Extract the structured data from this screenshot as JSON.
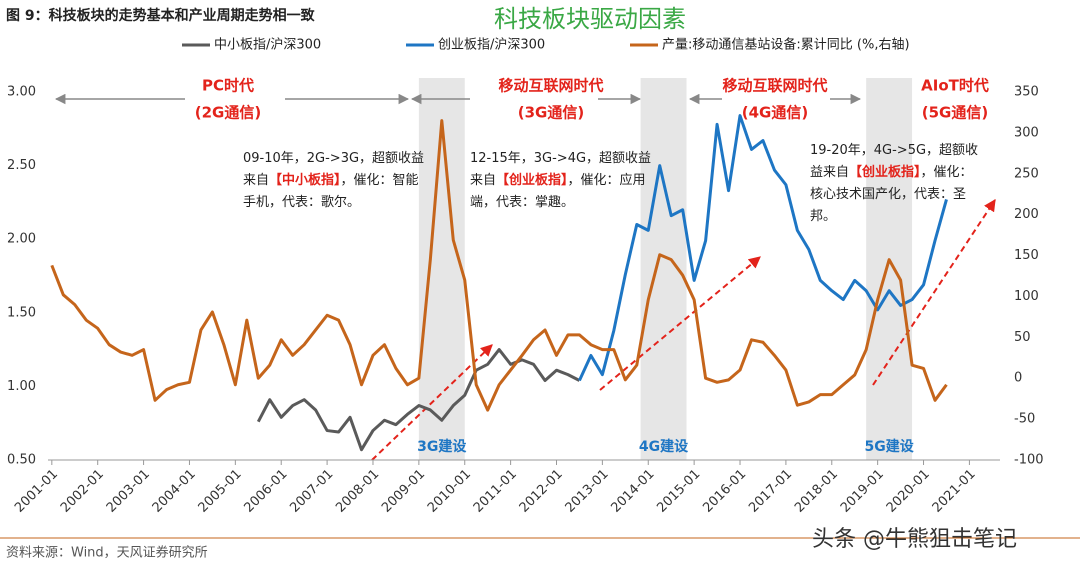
{
  "chart_data": {
    "type": "line",
    "title": "图 9：科技板块的走势基本和产业周期走势相一致",
    "subtitle": "科技板块驱动因素",
    "source": "资料来源：Wind，天风证券研究所",
    "watermark": "头条 @牛熊狙击笔记",
    "x": [
      "2001-01",
      "2001-04",
      "2001-07",
      "2001-10",
      "2002-01",
      "2002-04",
      "2002-07",
      "2002-10",
      "2003-01",
      "2003-04",
      "2003-07",
      "2003-10",
      "2004-01",
      "2004-04",
      "2004-07",
      "2004-10",
      "2005-01",
      "2005-04",
      "2005-07",
      "2005-10",
      "2006-01",
      "2006-04",
      "2006-07",
      "2006-10",
      "2007-01",
      "2007-04",
      "2007-07",
      "2007-10",
      "2008-01",
      "2008-04",
      "2008-07",
      "2008-10",
      "2009-01",
      "2009-04",
      "2009-07",
      "2009-10",
      "2010-01",
      "2010-04",
      "2010-07",
      "2010-10",
      "2011-01",
      "2011-04",
      "2011-07",
      "2011-10",
      "2012-01",
      "2012-04",
      "2012-07",
      "2012-10",
      "2013-01",
      "2013-04",
      "2013-07",
      "2013-10",
      "2014-01",
      "2014-04",
      "2014-07",
      "2014-10",
      "2015-01",
      "2015-04",
      "2015-07",
      "2015-10",
      "2016-01",
      "2016-04",
      "2016-07",
      "2016-10",
      "2017-01",
      "2017-04",
      "2017-07",
      "2017-10",
      "2018-01",
      "2018-04",
      "2018-07",
      "2018-10",
      "2019-01",
      "2019-04",
      "2019-07",
      "2019-10",
      "2020-01",
      "2020-04",
      "2020-07"
    ],
    "series": [
      {
        "name": "中小板指/沪深300",
        "color": "#5a5a5a",
        "axis": "y",
        "values": [
          null,
          null,
          null,
          null,
          null,
          null,
          null,
          null,
          null,
          null,
          null,
          null,
          null,
          null,
          null,
          null,
          null,
          null,
          0.76,
          0.91,
          0.79,
          0.87,
          0.91,
          0.84,
          0.7,
          0.69,
          0.79,
          0.57,
          0.7,
          0.77,
          0.74,
          0.81,
          0.87,
          0.84,
          0.77,
          0.87,
          0.94,
          1.11,
          1.15,
          1.25,
          1.15,
          1.18,
          1.15,
          1.04,
          1.11,
          1.08,
          1.04,
          null,
          null,
          null,
          null,
          null,
          null,
          null,
          null,
          null,
          null,
          null,
          null,
          null,
          null,
          null,
          null,
          null,
          null,
          null,
          null,
          null,
          null,
          null,
          null,
          null,
          null,
          null,
          null,
          null,
          null,
          null,
          null
        ]
      },
      {
        "name": "创业板指/沪深300",
        "color": "#1e76c4",
        "axis": "y",
        "values": [
          null,
          null,
          null,
          null,
          null,
          null,
          null,
          null,
          null,
          null,
          null,
          null,
          null,
          null,
          null,
          null,
          null,
          null,
          null,
          null,
          null,
          null,
          null,
          null,
          null,
          null,
          null,
          null,
          null,
          null,
          null,
          null,
          null,
          null,
          null,
          null,
          null,
          null,
          null,
          null,
          null,
          null,
          null,
          null,
          null,
          null,
          1.04,
          1.21,
          1.08,
          1.38,
          1.76,
          2.1,
          2.06,
          2.5,
          2.16,
          2.2,
          1.72,
          1.99,
          2.78,
          2.33,
          2.84,
          2.61,
          2.67,
          2.47,
          2.37,
          2.06,
          1.93,
          1.72,
          1.65,
          1.59,
          1.72,
          1.65,
          1.52,
          1.65,
          1.55,
          1.59,
          1.69,
          1.99,
          2.27
        ]
      },
      {
        "name": "产量:移动通信基站设备:累计同比 (%,右轴)",
        "color": "#c5651b",
        "axis": "y2",
        "values": [
          138,
          102,
          90,
          71,
          61,
          41,
          32,
          28,
          35,
          -27,
          -14,
          -8,
          -5,
          59,
          81,
          41,
          -8,
          71,
          0,
          16,
          47,
          28,
          41,
          59,
          77,
          71,
          41,
          -8,
          28,
          41,
          12,
          -8,
          0,
          145,
          315,
          169,
          120,
          -8,
          -39,
          -8,
          10,
          28,
          47,
          59,
          28,
          53,
          53,
          41,
          35,
          35,
          -2,
          16,
          96,
          151,
          145,
          126,
          96,
          0,
          -5,
          -2,
          10,
          47,
          44,
          28,
          10,
          -33,
          -29,
          -20,
          -20,
          -8,
          4,
          35,
          96,
          145,
          120,
          16,
          12,
          -27,
          -8
        ]
      }
    ],
    "xlim": [
      "2000-12",
      "2021-09"
    ],
    "xticks": [
      "2001-01",
      "2002-01",
      "2003-01",
      "2004-01",
      "2005-01",
      "2006-01",
      "2007-01",
      "2008-01",
      "2009-01",
      "2010-01",
      "2011-01",
      "2012-01",
      "2013-01",
      "2014-01",
      "2015-01",
      "2016-01",
      "2017-01",
      "2018-01",
      "2019-01",
      "2020-01",
      "2021-01"
    ],
    "ylim": [
      0.5,
      3.0
    ],
    "yticks": [
      {
        "value": 0.5,
        "label": "0.50"
      },
      {
        "value": 1,
        "label": "1.00"
      },
      {
        "value": 1.5,
        "label": "1.50"
      },
      {
        "value": 2,
        "label": "2.00"
      },
      {
        "value": 2.5,
        "label": "2.50"
      },
      {
        "value": 3,
        "label": "3.00"
      }
    ],
    "y2lim": [
      -100,
      350
    ],
    "y2ticks": [
      -100,
      -50,
      0,
      50,
      100,
      150,
      200,
      250,
      300,
      350
    ],
    "bands": [
      {
        "start": "2009-01",
        "end": "2010-01",
        "label": "3G建设"
      },
      {
        "start": "2013-11",
        "end": "2014-11",
        "label": "4G建设"
      },
      {
        "start": "2018-10",
        "end": "2019-10",
        "label": "5G建设"
      }
    ],
    "eras": [
      {
        "name": "PC时代",
        "sub": "(2G通信)"
      },
      {
        "name": "移动互联网时代",
        "sub": "(3G通信)"
      },
      {
        "name": "移动互联网时代",
        "sub": "(4G通信)"
      },
      {
        "name": "AIoT时代",
        "sub": "(5G通信)"
      }
    ],
    "annotations": [
      {
        "lines": [
          [
            {
              "text": "09-10年，2G->3G，超额收益"
            }
          ],
          [
            {
              "text": "来自"
            },
            {
              "text": "【中小板指】",
              "emphasis": true
            },
            {
              "text": "，催化：智能"
            }
          ],
          [
            {
              "text": "手机，代表：歌尔。"
            }
          ]
        ]
      },
      {
        "lines": [
          [
            {
              "text": "12-15年，3G->4G，超额收益"
            }
          ],
          [
            {
              "text": "来自"
            },
            {
              "text": "【创业板指】",
              "emphasis": true
            },
            {
              "text": "，催化：应用"
            }
          ],
          [
            {
              "text": "端，代表：掌趣。"
            }
          ]
        ]
      },
      {
        "lines": [
          [
            {
              "text": "19-20年，4G->5G，超额收"
            }
          ],
          [
            {
              "text": "益来自"
            },
            {
              "text": "【创业板指】",
              "emphasis": true
            },
            {
              "text": "，催化："
            }
          ],
          [
            {
              "text": "核心技术国产化，代表：圣"
            }
          ],
          [
            {
              "text": "邦。"
            }
          ]
        ]
      }
    ]
  }
}
